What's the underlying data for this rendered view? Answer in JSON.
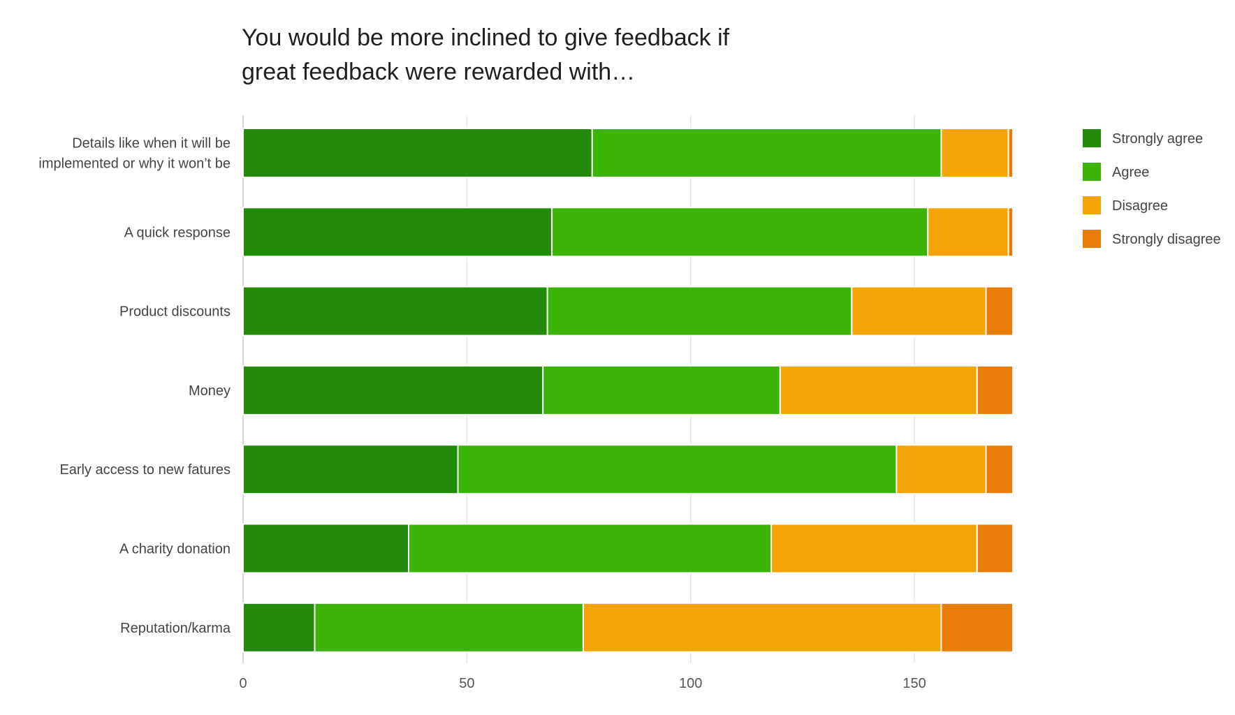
{
  "chart_data": {
    "type": "bar",
    "orientation": "horizontal",
    "stacked": true,
    "title_lines": [
      "You would be more inclined to give feedback if",
      "great feedback were rewarded with…"
    ],
    "categories": [
      [
        "Details like when it will be",
        "implemented or why it won’t be"
      ],
      [
        "A quick response"
      ],
      [
        "Product discounts"
      ],
      [
        "Money"
      ],
      [
        "Early access to new fatures"
      ],
      [
        "A charity donation"
      ],
      [
        "Reputation/karma"
      ]
    ],
    "series": [
      {
        "name": "Strongly agree",
        "color": "#248a0a",
        "values": [
          78,
          69,
          68,
          67,
          48,
          37,
          16
        ]
      },
      {
        "name": "Agree",
        "color": "#3bb307",
        "values": [
          78,
          84,
          68,
          53,
          98,
          81,
          60
        ]
      },
      {
        "name": "Disagree",
        "color": "#f5a405",
        "values": [
          15,
          18,
          30,
          44,
          20,
          46,
          80
        ]
      },
      {
        "name": "Strongly disagree",
        "color": "#e77c06",
        "values": [
          1,
          1,
          6,
          8,
          6,
          8,
          16
        ]
      }
    ],
    "xlim": [
      0,
      172
    ],
    "xticks": [
      "0",
      "50",
      "100",
      "150"
    ],
    "xtick_values": [
      0,
      50,
      100,
      150
    ],
    "grid": true,
    "legend_position": "right"
  }
}
